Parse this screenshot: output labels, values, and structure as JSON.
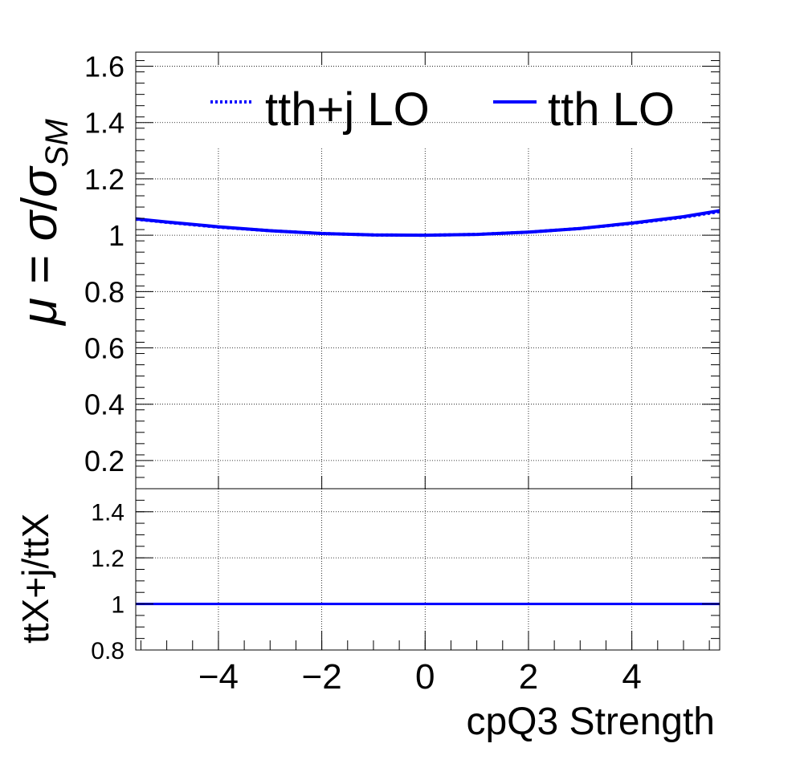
{
  "chart_data": [
    {
      "type": "line",
      "panel": "top",
      "ylabel": "μ = σ/σ_SM",
      "ylabel_parts": {
        "mu": "μ",
        "eq": " = ",
        "sigma": "σ",
        "slash": "/",
        "sigma_sm": "σ",
        "sub": "SM"
      },
      "xlim": [
        -5.6,
        5.7
      ],
      "ylim": [
        0.1,
        1.65
      ],
      "yticks": [
        0.2,
        0.4,
        0.6,
        0.8,
        1.0,
        1.2,
        1.4,
        1.6
      ],
      "ytick_labels": [
        "0.2",
        "0.4",
        "0.6",
        "0.8",
        "1",
        "1.2",
        "1.4",
        "1.6"
      ],
      "grid": true,
      "legend_placement": "top",
      "series": [
        {
          "name": "tth+j LO",
          "style": "dotted",
          "color": "#0000ff",
          "x": [
            -5.6,
            -5,
            -4,
            -3,
            -2,
            -1,
            0,
            1,
            2,
            3,
            4,
            5,
            5.7
          ],
          "y": [
            1.057,
            1.046,
            1.029,
            1.016,
            1.006,
            1.001,
            1.0,
            1.003,
            1.011,
            1.024,
            1.042,
            1.064,
            1.084
          ]
        },
        {
          "name": "tth LO",
          "style": "solid",
          "color": "#0000ff",
          "x": [
            -5.6,
            -5,
            -4,
            -3,
            -2,
            -1,
            0,
            1,
            2,
            3,
            4,
            5,
            5.7
          ],
          "y": [
            1.058,
            1.047,
            1.03,
            1.016,
            1.006,
            1.001,
            1.0,
            1.003,
            1.011,
            1.024,
            1.043,
            1.066,
            1.087
          ]
        }
      ]
    },
    {
      "type": "line",
      "panel": "bottom",
      "xlabel": "cpQ3 Strength",
      "ylabel": "ttX+j/ttX",
      "xlim": [
        -5.6,
        5.7
      ],
      "ylim": [
        0.8,
        1.5
      ],
      "xticks": [
        -4,
        -2,
        0,
        2,
        4
      ],
      "xtick_labels": [
        "−4",
        "−2",
        "0",
        "2",
        "4"
      ],
      "yticks": [
        0.8,
        1.0,
        1.2,
        1.4
      ],
      "ytick_labels": [
        "0.8",
        "1",
        "1.2",
        "1.4"
      ],
      "grid": true,
      "series": [
        {
          "style": "solid",
          "color": "#0000ff",
          "x": [
            -5.6,
            -4,
            -2,
            0,
            2,
            4,
            5.7
          ],
          "y": [
            1.0,
            1.0,
            1.0,
            1.0,
            1.0,
            1.0,
            1.0
          ]
        }
      ]
    }
  ]
}
